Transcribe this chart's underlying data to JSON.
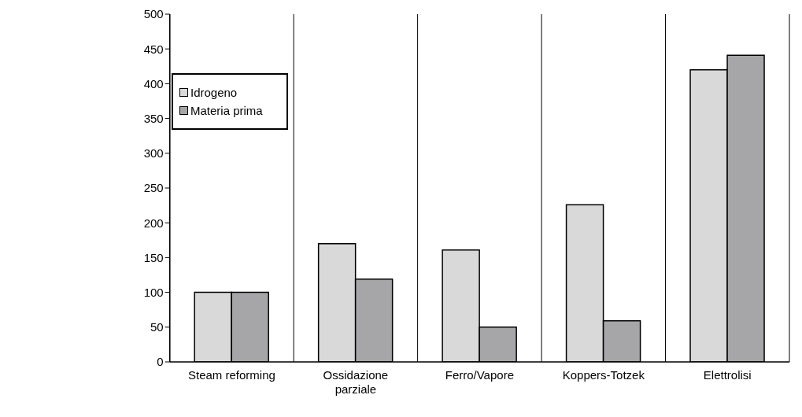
{
  "chart_data": {
    "type": "bar",
    "categories": [
      "Steam reforming",
      "Ossidazione parziale",
      "Ferro/Vapore",
      "Koppers-Totzek",
      "Elettrolisi"
    ],
    "series": [
      {
        "name": "Idrogeno",
        "color": "#d9d9d9",
        "values": [
          100,
          170,
          161,
          226,
          420
        ]
      },
      {
        "name": "Materia prima",
        "color": "#a6a6a8",
        "values": [
          100,
          119,
          50,
          59,
          441
        ]
      }
    ],
    "ylim": [
      0,
      500
    ],
    "yticks": [
      0,
      50,
      100,
      150,
      200,
      250,
      300,
      350,
      400,
      450,
      500
    ],
    "grid": "x",
    "legend": "top left"
  }
}
